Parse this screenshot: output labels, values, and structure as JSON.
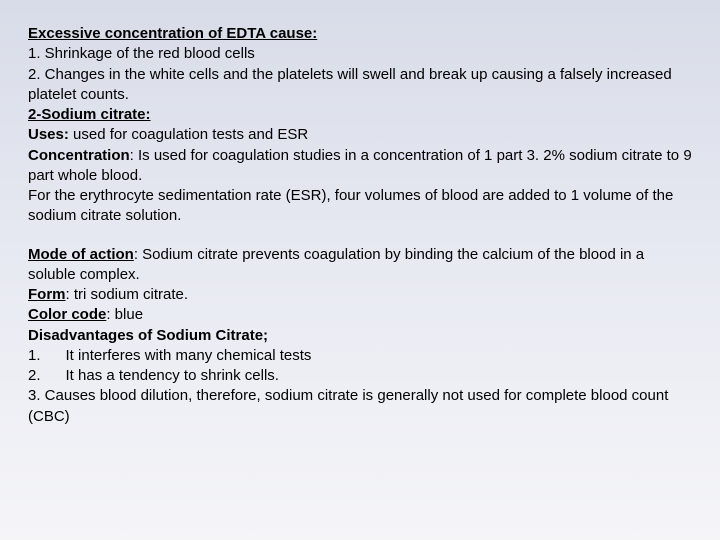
{
  "section1": {
    "heading": "Excessive concentration of EDTA cause:",
    "item1": "1. Shrinkage of the red blood cells",
    "item2": "2. Changes in the white cells and the platelets will swell and break up causing a falsely increased platelet counts.",
    "subheading": "2-Sodium citrate:",
    "uses_label": "Uses:",
    "uses_text": " used for coagulation tests and ESR",
    "conc_label": "Concentration",
    "conc_text": ":  Is used for coagulation studies in a concentration of 1 part 3. 2% sodium citrate to 9 part whole blood.",
    "conc_text2": "For the erythrocyte sedimentation rate (ESR), four volumes of blood are added to 1 volume of the sodium citrate solution."
  },
  "section2": {
    "moa_label": "Mode of action",
    "moa_text": ": Sodium citrate prevents coagulation by binding the calcium of the blood in a soluble complex.",
    "form_label": "Form",
    "form_text": ": tri sodium citrate.",
    "color_label": "Color code",
    "color_text": ": blue",
    "disadv_heading": "Disadvantages of Sodium Citrate;",
    "d1": "1.      It interferes with many chemical tests",
    "d2": "2.      It has a tendency to shrink cells.",
    "d3": "3.      Causes blood dilution, therefore, sodium  citrate is  generally not used for complete blood  count (CBC)"
  }
}
